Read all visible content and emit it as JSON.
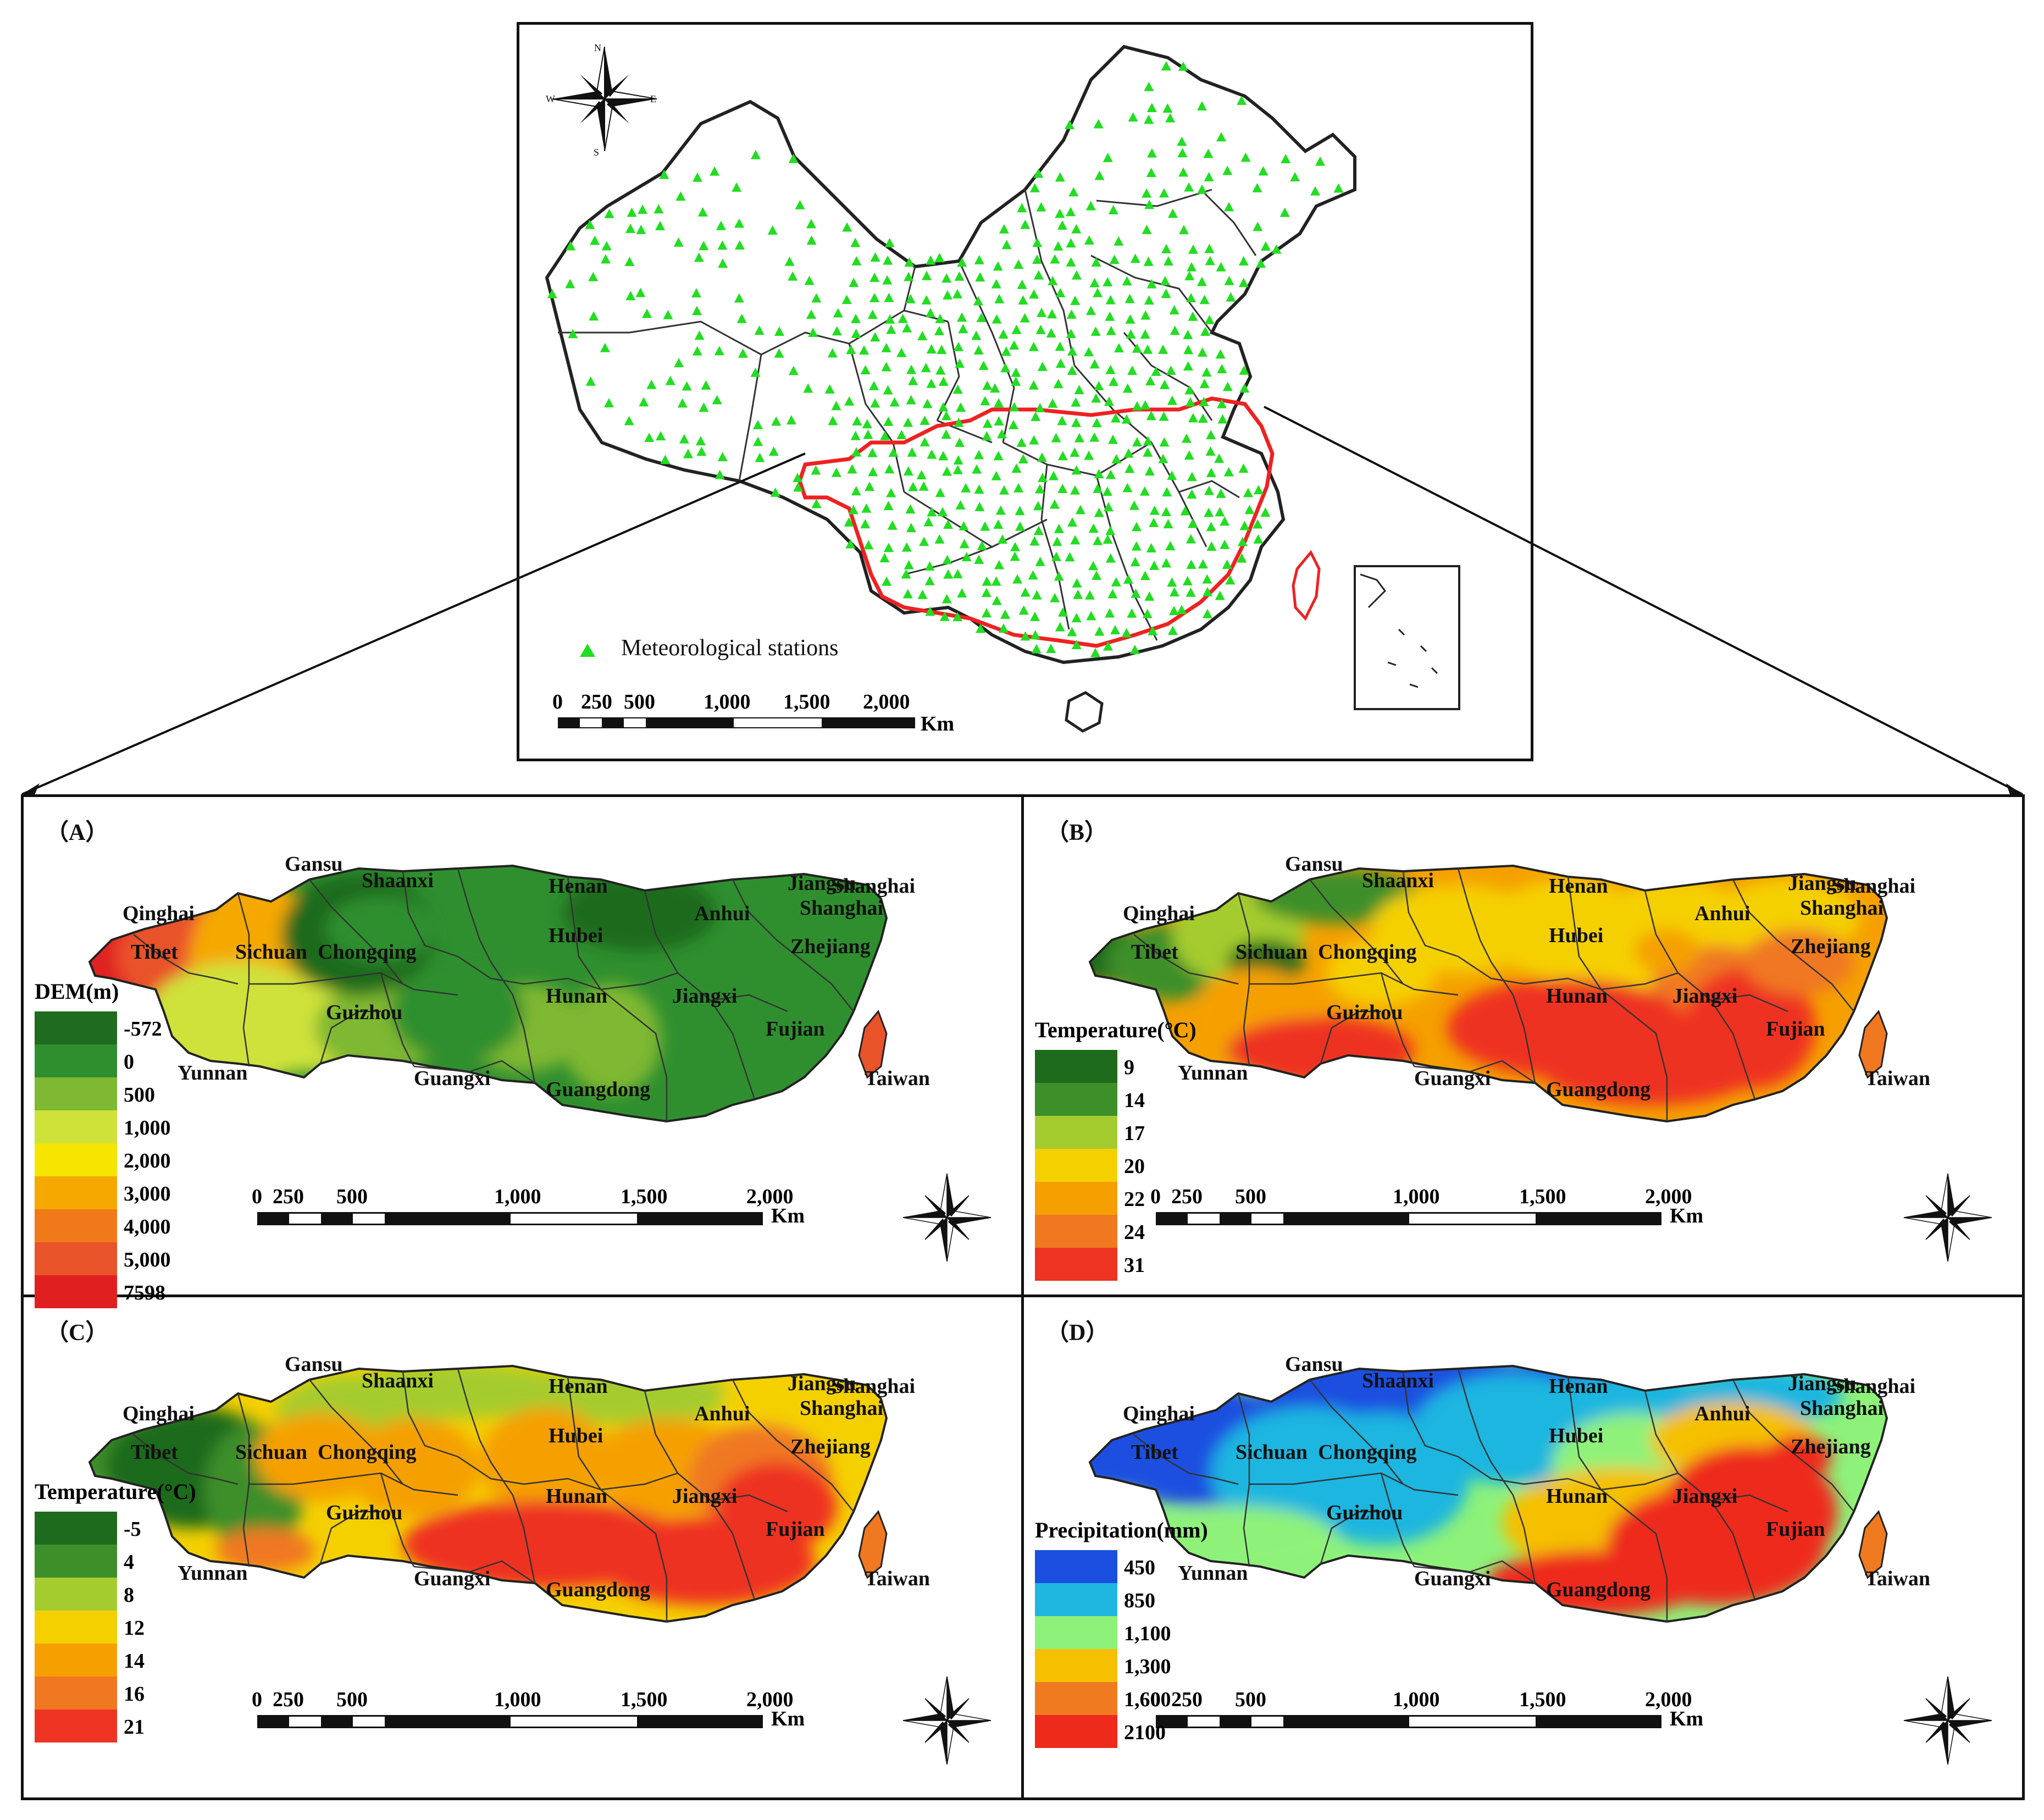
{
  "overview": {
    "station_label": "Meteorological stations",
    "station_color": "#22dd22",
    "study_boundary_color": "#ee2222",
    "scalebar": {
      "ticks": [
        "0",
        "250",
        "500",
        "1,000",
        "1,500",
        "2,000"
      ],
      "unit": "Km"
    },
    "compass": {
      "n": "N",
      "s": "S",
      "e": "E",
      "w": "W"
    }
  },
  "panels": [
    {
      "tag": "（A）",
      "legend_title": "DEM(m)",
      "legend": [
        {
          "value": "-572",
          "color": "#1f6b1f"
        },
        {
          "value": "0",
          "color": "#2f8f2f"
        },
        {
          "value": "500",
          "color": "#7fb832"
        },
        {
          "value": "1,000",
          "color": "#cfe23a"
        },
        {
          "value": "2,000",
          "color": "#f5e500"
        },
        {
          "value": "3,000",
          "color": "#f5a800"
        },
        {
          "value": "4,000",
          "color": "#f07a1a"
        },
        {
          "value": "5,000",
          "color": "#e9532a"
        },
        {
          "value": "7598",
          "color": "#e02020"
        }
      ],
      "provinces": [
        "Qinghai",
        "Tibet",
        "Sichuan",
        "Gansu",
        "Shaanxi",
        "Henan",
        "Jiangsu",
        "Shanghai",
        "Shanghai",
        "Hubei",
        "Anhui",
        "Chongqing",
        "Zhejiang",
        "Guizhou",
        "Hunan",
        "Jiangxi",
        "Fujian",
        "Yunnan",
        "Guangxi",
        "Guangdong",
        "Taiwan"
      ],
      "scalebar": {
        "ticks": [
          "0",
          "250",
          "500",
          "1,000",
          "1,500",
          "2,000"
        ],
        "unit": "Km"
      }
    },
    {
      "tag": "（B）",
      "legend_title": "Temperature(°C)",
      "legend": [
        {
          "value": "9",
          "color": "#1e6b1e"
        },
        {
          "value": "14",
          "color": "#3d8f2a"
        },
        {
          "value": "17",
          "color": "#a5cc2e"
        },
        {
          "value": "20",
          "color": "#f5d000"
        },
        {
          "value": "22",
          "color": "#f5a000"
        },
        {
          "value": "24",
          "color": "#f07820"
        },
        {
          "value": "31",
          "color": "#ee3322"
        }
      ],
      "provinces": [
        "Qinghai",
        "Tibet",
        "Sichuan",
        "Gansu",
        "Shaanxi",
        "Henan",
        "Jiangsu",
        "Shanghai",
        "Shanghai",
        "Hubei",
        "Anhui",
        "Chongqing",
        "Zhejiang",
        "Guizhou",
        "Hunan",
        "Jiangxi",
        "Fujian",
        "Yunnan",
        "Guangxi",
        "Guangdong",
        "Taiwan"
      ],
      "scalebar": {
        "ticks": [
          "0",
          "250",
          "500",
          "1,000",
          "1,500",
          "2,000"
        ],
        "unit": "Km"
      }
    },
    {
      "tag": "（C）",
      "legend_title": "Temperature(°C)",
      "legend": [
        {
          "value": "-5",
          "color": "#1e6b1e"
        },
        {
          "value": "4",
          "color": "#3d8f2a"
        },
        {
          "value": "8",
          "color": "#a5cc2e"
        },
        {
          "value": "12",
          "color": "#f5d000"
        },
        {
          "value": "14",
          "color": "#f5a000"
        },
        {
          "value": "16",
          "color": "#f07820"
        },
        {
          "value": "21",
          "color": "#ee3322"
        }
      ],
      "provinces": [
        "Qinghai",
        "Tibet",
        "Sichuan",
        "Gansu",
        "Shaanxi",
        "Henan",
        "Jiangsu",
        "Shanghai",
        "Shanghai",
        "Hubei",
        "Anhui",
        "Chongqing",
        "Zhejiang",
        "Guizhou",
        "Hunan",
        "Jiangxi",
        "Fujian",
        "Yunnan",
        "Guangxi",
        "Guangdong",
        "Taiwan"
      ],
      "scalebar": {
        "ticks": [
          "0",
          "250",
          "500",
          "1,000",
          "1,500",
          "2,000"
        ],
        "unit": "Km"
      }
    },
    {
      "tag": "（D）",
      "legend_title": "Precipitation(mm)",
      "legend": [
        {
          "value": "450",
          "color": "#1a4fe0"
        },
        {
          "value": "850",
          "color": "#1fb6e0"
        },
        {
          "value": "1,100",
          "color": "#8ef27a"
        },
        {
          "value": "1,300",
          "color": "#f5c000"
        },
        {
          "value": "1,600",
          "color": "#f07a20"
        },
        {
          "value": "2100",
          "color": "#ee2a1a"
        }
      ],
      "provinces": [
        "Qinghai",
        "Tibet",
        "Sichuan",
        "Gansu",
        "Shaanxi",
        "Henan",
        "Jiangsu",
        "Shanghai",
        "Shanghai",
        "Hubei",
        "Anhui",
        "Chongqing",
        "Zhejiang",
        "Guizhou",
        "Hunan",
        "Jiangxi",
        "Fujian",
        "Yunnan",
        "Guangxi",
        "Guangdong",
        "Taiwan"
      ],
      "scalebar": {
        "ticks": [
          "0",
          "250",
          "500",
          "1,000",
          "1,500",
          "2,000"
        ],
        "unit": "Km"
      }
    }
  ]
}
